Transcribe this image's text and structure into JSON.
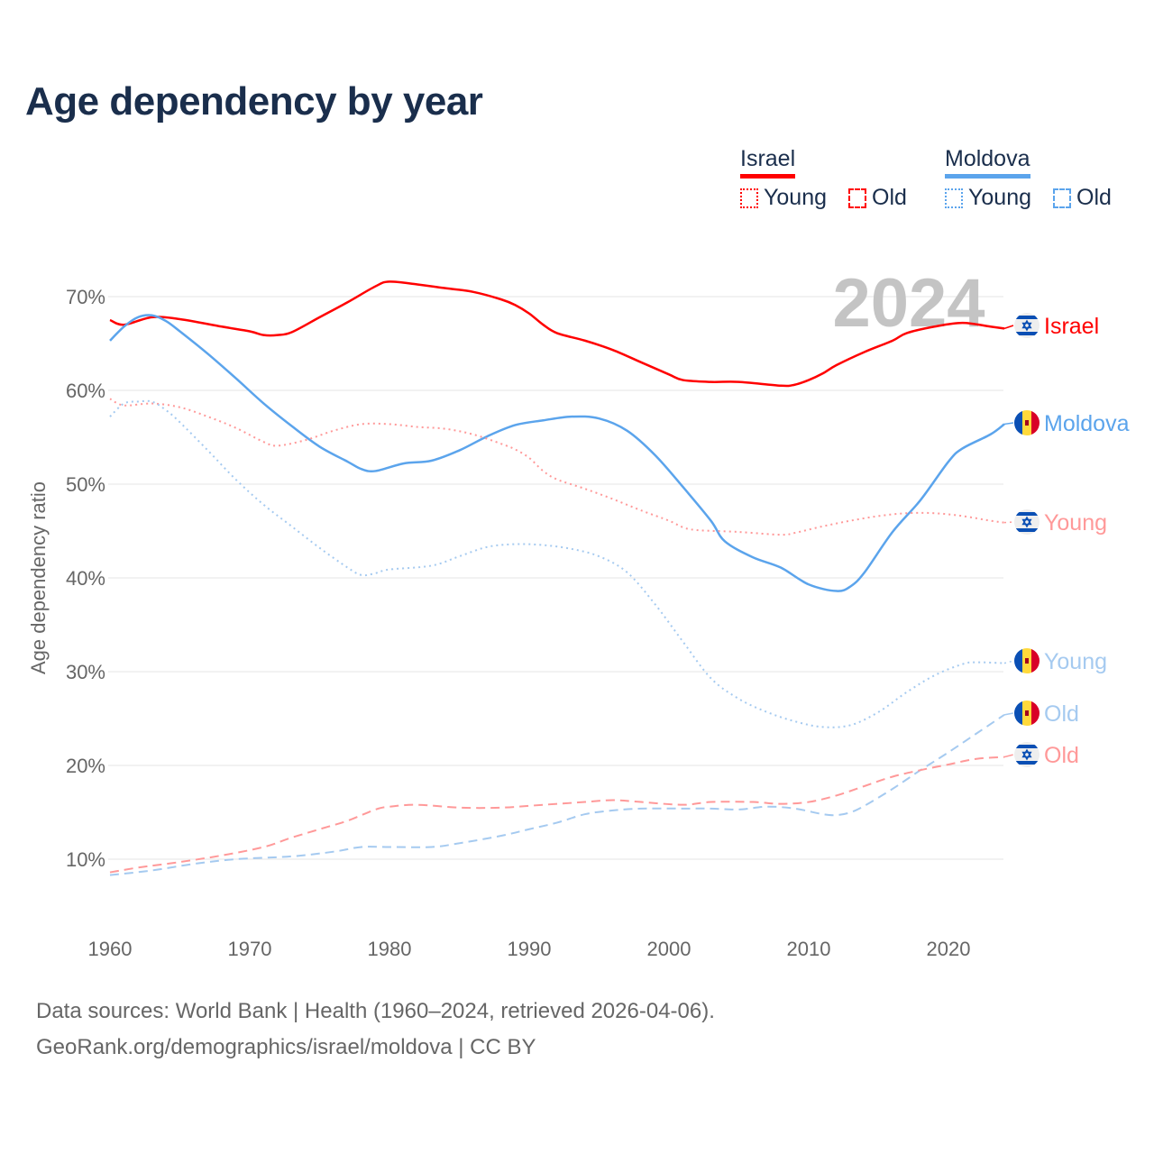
{
  "title": "Age dependency by year",
  "legend": {
    "groups": [
      {
        "name": "Israel",
        "color": "#ff0000",
        "young_label": "Young",
        "old_label": "Old"
      },
      {
        "name": "Moldova",
        "color": "#5ba4ec",
        "young_label": "Young",
        "old_label": "Old"
      }
    ]
  },
  "year_watermark": "2024",
  "footer": {
    "line1": "Data sources: World Bank | Health (1960–2024, retrieved 2026-04-06).",
    "line2": "GeoRank.org/demographics/israel/moldova | CC BY"
  },
  "chart_data": {
    "type": "line",
    "title": "Age dependency by year",
    "xlabel": "",
    "ylabel": "Age dependency ratio",
    "xlim": [
      1960,
      2024
    ],
    "ylim": [
      3,
      76
    ],
    "x_ticks": [
      "1960",
      "1970",
      "1980",
      "1990",
      "2000",
      "2010",
      "2020"
    ],
    "y_ticks": [
      "10%",
      "20%",
      "30%",
      "40%",
      "50%",
      "60%",
      "70%"
    ],
    "grid": true,
    "legend_position": "top-right",
    "series": [
      {
        "name": "Israel",
        "end_label": "Israel",
        "country": "israel",
        "style": "solid",
        "color": "#ff0000",
        "points": [
          [
            1960,
            67.5
          ],
          [
            1961,
            67.0
          ],
          [
            1963,
            67.8
          ],
          [
            1965,
            67.6
          ],
          [
            1968,
            66.8
          ],
          [
            1970,
            66.3
          ],
          [
            1971,
            65.9
          ],
          [
            1972,
            65.9
          ],
          [
            1973,
            66.2
          ],
          [
            1975,
            67.8
          ],
          [
            1977,
            69.4
          ],
          [
            1979,
            71.1
          ],
          [
            1980,
            71.6
          ],
          [
            1982,
            71.3
          ],
          [
            1984,
            70.9
          ],
          [
            1986,
            70.5
          ],
          [
            1988,
            69.7
          ],
          [
            1989,
            69.1
          ],
          [
            1990,
            68.2
          ],
          [
            1991,
            67.0
          ],
          [
            1992,
            66.1
          ],
          [
            1994,
            65.3
          ],
          [
            1996,
            64.3
          ],
          [
            1998,
            63.0
          ],
          [
            2000,
            61.7
          ],
          [
            2001,
            61.1
          ],
          [
            2003,
            60.9
          ],
          [
            2005,
            60.9
          ],
          [
            2008,
            60.5
          ],
          [
            2009,
            60.6
          ],
          [
            2010,
            61.1
          ],
          [
            2011,
            61.8
          ],
          [
            2012,
            62.7
          ],
          [
            2014,
            64.1
          ],
          [
            2016,
            65.3
          ],
          [
            2017,
            66.1
          ],
          [
            2019,
            66.8
          ],
          [
            2021,
            67.2
          ],
          [
            2023,
            66.8
          ],
          [
            2024,
            66.6
          ]
        ]
      },
      {
        "name": "Moldova",
        "end_label": "Moldova",
        "country": "moldova",
        "style": "solid",
        "color": "#5ba4ec",
        "points": [
          [
            1960,
            65.3
          ],
          [
            1961,
            66.8
          ],
          [
            1962,
            67.8
          ],
          [
            1963,
            68.0
          ],
          [
            1964,
            67.4
          ],
          [
            1965,
            66.3
          ],
          [
            1967,
            63.9
          ],
          [
            1969,
            61.3
          ],
          [
            1971,
            58.6
          ],
          [
            1973,
            56.2
          ],
          [
            1975,
            54.0
          ],
          [
            1977,
            52.4
          ],
          [
            1978,
            51.6
          ],
          [
            1979,
            51.4
          ],
          [
            1981,
            52.2
          ],
          [
            1983,
            52.5
          ],
          [
            1985,
            53.6
          ],
          [
            1987,
            55.1
          ],
          [
            1989,
            56.3
          ],
          [
            1991,
            56.8
          ],
          [
            1993,
            57.2
          ],
          [
            1995,
            57.0
          ],
          [
            1997,
            55.7
          ],
          [
            1999,
            53.1
          ],
          [
            2001,
            49.7
          ],
          [
            2003,
            46.1
          ],
          [
            2004,
            43.9
          ],
          [
            2006,
            42.2
          ],
          [
            2008,
            41.1
          ],
          [
            2010,
            39.3
          ],
          [
            2012,
            38.6
          ],
          [
            2013,
            39.1
          ],
          [
            2014,
            40.6
          ],
          [
            2016,
            44.9
          ],
          [
            2018,
            48.3
          ],
          [
            2020,
            52.4
          ],
          [
            2021,
            53.8
          ],
          [
            2023,
            55.3
          ],
          [
            2024,
            56.4
          ]
        ]
      },
      {
        "name": "Israel Young",
        "end_label": "Young",
        "country": "israel",
        "style": "dotted",
        "color": "#ff9999",
        "points": [
          [
            1960,
            59.1
          ],
          [
            1961,
            58.4
          ],
          [
            1963,
            58.6
          ],
          [
            1965,
            58.2
          ],
          [
            1967,
            57.2
          ],
          [
            1969,
            56.0
          ],
          [
            1971,
            54.5
          ],
          [
            1972,
            54.1
          ],
          [
            1974,
            54.7
          ],
          [
            1976,
            55.7
          ],
          [
            1978,
            56.4
          ],
          [
            1980,
            56.4
          ],
          [
            1982,
            56.1
          ],
          [
            1984,
            55.9
          ],
          [
            1986,
            55.3
          ],
          [
            1988,
            54.3
          ],
          [
            1989,
            53.7
          ],
          [
            1990,
            52.8
          ],
          [
            1991,
            51.4
          ],
          [
            1992,
            50.5
          ],
          [
            1994,
            49.5
          ],
          [
            1996,
            48.4
          ],
          [
            1998,
            47.2
          ],
          [
            2000,
            46.1
          ],
          [
            2001,
            45.4
          ],
          [
            2002,
            45.1
          ],
          [
            2005,
            44.9
          ],
          [
            2008,
            44.6
          ],
          [
            2009,
            44.8
          ],
          [
            2011,
            45.5
          ],
          [
            2013,
            46.1
          ],
          [
            2015,
            46.6
          ],
          [
            2017,
            46.9
          ],
          [
            2019,
            46.9
          ],
          [
            2021,
            46.6
          ],
          [
            2023,
            46.1
          ],
          [
            2024,
            45.9
          ]
        ]
      },
      {
        "name": "Moldova Young",
        "end_label": "Young",
        "country": "moldova",
        "style": "dotted",
        "color": "#a5caf0",
        "points": [
          [
            1960,
            57.2
          ],
          [
            1961,
            58.6
          ],
          [
            1962,
            58.8
          ],
          [
            1963,
            58.8
          ],
          [
            1964,
            57.9
          ],
          [
            1965,
            56.6
          ],
          [
            1967,
            53.6
          ],
          [
            1969,
            50.5
          ],
          [
            1971,
            47.8
          ],
          [
            1973,
            45.5
          ],
          [
            1975,
            43.2
          ],
          [
            1977,
            41.1
          ],
          [
            1978,
            40.3
          ],
          [
            1979,
            40.5
          ],
          [
            1980,
            40.9
          ],
          [
            1983,
            41.3
          ],
          [
            1985,
            42.3
          ],
          [
            1987,
            43.3
          ],
          [
            1989,
            43.6
          ],
          [
            1991,
            43.5
          ],
          [
            1993,
            43.1
          ],
          [
            1995,
            42.3
          ],
          [
            1997,
            40.6
          ],
          [
            1999,
            37.2
          ],
          [
            2001,
            33.2
          ],
          [
            2003,
            29.3
          ],
          [
            2005,
            27.1
          ],
          [
            2007,
            25.7
          ],
          [
            2009,
            24.7
          ],
          [
            2011,
            24.1
          ],
          [
            2013,
            24.3
          ],
          [
            2015,
            25.7
          ],
          [
            2017,
            27.8
          ],
          [
            2019,
            29.6
          ],
          [
            2021,
            30.8
          ],
          [
            2022,
            31.0
          ],
          [
            2024,
            30.9
          ]
        ]
      },
      {
        "name": "Moldova Old",
        "end_label": "Old",
        "country": "moldova",
        "style": "dashed",
        "color": "#a5caf0",
        "points": [
          [
            1960,
            8.3
          ],
          [
            1963,
            8.8
          ],
          [
            1966,
            9.5
          ],
          [
            1969,
            10.0
          ],
          [
            1973,
            10.3
          ],
          [
            1976,
            10.8
          ],
          [
            1978,
            11.3
          ],
          [
            1980,
            11.3
          ],
          [
            1983,
            11.3
          ],
          [
            1985,
            11.7
          ],
          [
            1988,
            12.5
          ],
          [
            1990,
            13.2
          ],
          [
            1992,
            13.9
          ],
          [
            1994,
            14.8
          ],
          [
            1996,
            15.2
          ],
          [
            1998,
            15.4
          ],
          [
            2001,
            15.4
          ],
          [
            2003,
            15.4
          ],
          [
            2005,
            15.3
          ],
          [
            2007,
            15.6
          ],
          [
            2009,
            15.4
          ],
          [
            2011,
            14.8
          ],
          [
            2012,
            14.7
          ],
          [
            2013,
            15.0
          ],
          [
            2014,
            15.7
          ],
          [
            2016,
            17.5
          ],
          [
            2018,
            19.5
          ],
          [
            2020,
            21.4
          ],
          [
            2022,
            23.4
          ],
          [
            2024,
            25.4
          ]
        ]
      },
      {
        "name": "Israel Old",
        "end_label": "Old",
        "country": "israel",
        "style": "dashed",
        "color": "#ff9999",
        "points": [
          [
            1960,
            8.6
          ],
          [
            1962,
            9.1
          ],
          [
            1965,
            9.7
          ],
          [
            1968,
            10.4
          ],
          [
            1971,
            11.3
          ],
          [
            1973,
            12.3
          ],
          [
            1975,
            13.2
          ],
          [
            1977,
            14.1
          ],
          [
            1979,
            15.3
          ],
          [
            1980,
            15.6
          ],
          [
            1982,
            15.8
          ],
          [
            1985,
            15.5
          ],
          [
            1988,
            15.5
          ],
          [
            1991,
            15.8
          ],
          [
            1994,
            16.1
          ],
          [
            1996,
            16.3
          ],
          [
            1998,
            16.1
          ],
          [
            2001,
            15.8
          ],
          [
            2003,
            16.1
          ],
          [
            2006,
            16.1
          ],
          [
            2008,
            15.9
          ],
          [
            2010,
            16.1
          ],
          [
            2012,
            16.8
          ],
          [
            2014,
            17.8
          ],
          [
            2016,
            18.8
          ],
          [
            2018,
            19.5
          ],
          [
            2020,
            20.1
          ],
          [
            2022,
            20.7
          ],
          [
            2024,
            20.9
          ]
        ]
      }
    ]
  }
}
